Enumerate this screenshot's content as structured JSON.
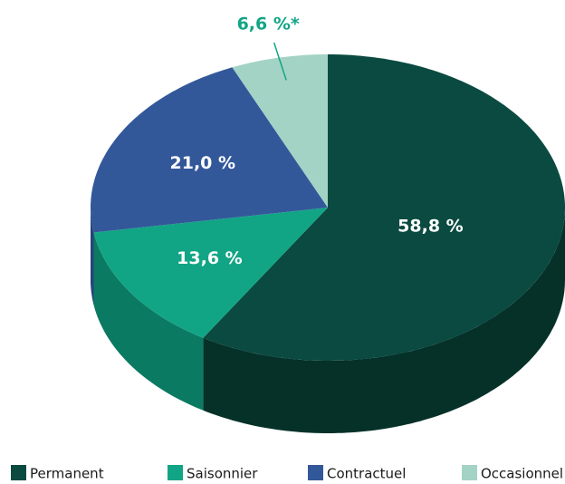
{
  "chart_data": {
    "type": "pie3d",
    "categories": [
      "Permanent",
      "Saisonnier",
      "Contractuel",
      "Occasionnel"
    ],
    "values": [
      58.8,
      13.6,
      21.0,
      6.6
    ],
    "value_labels": [
      "58,8 %",
      "13,6 %",
      "21,0 %",
      "6,6 %*"
    ],
    "colors": [
      "#0a4a40",
      "#12a585",
      "#33589a",
      "#a3d3c4"
    ],
    "side_colors": [
      "#053129",
      "#0b7a62",
      "#26447a",
      "#7fb3a3"
    ],
    "label_colors": [
      "#ffffff",
      "#ffffff",
      "#ffffff",
      "#12a585"
    ],
    "legend": "bottom"
  }
}
